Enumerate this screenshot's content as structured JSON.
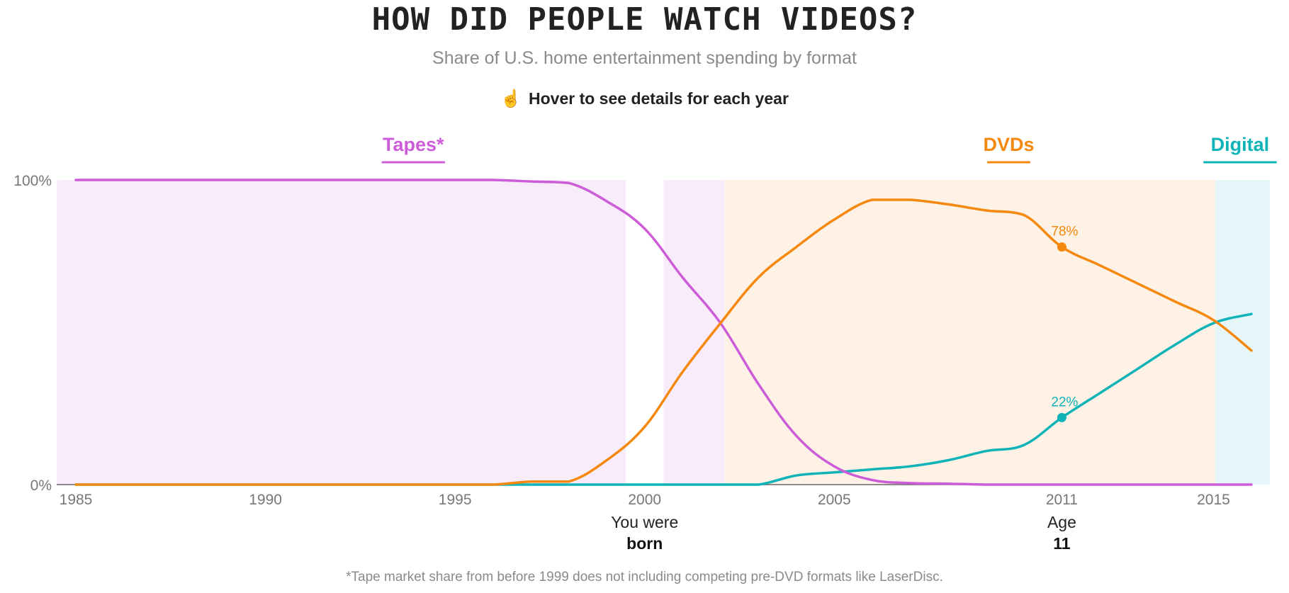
{
  "header": {
    "title": "HOW DID PEOPLE WATCH VIDEOS?",
    "subtitle": "Share of U.S. home entertainment spending by format",
    "hint": "Hover to see details for each year",
    "hint_icon": "pointing-hand-icon"
  },
  "footnote": "*Tape market share from before 1999 does not including competing pre-DVD formats like LaserDisc.",
  "colors": {
    "tapes": "#cc5cd8",
    "dvds": "#f5890f",
    "digital": "#10b3b8",
    "tapes_band": "#f8ecfa",
    "dvds_band": "#fef2e6",
    "digital_band": "#e6f6f8"
  },
  "chart_data": {
    "type": "line",
    "title": "HOW DID PEOPLE WATCH VIDEOS?",
    "subtitle": "Share of U.S. home entertainment spending by format",
    "x": [
      1985,
      1986,
      1987,
      1988,
      1989,
      1990,
      1991,
      1992,
      1993,
      1994,
      1995,
      1996,
      1997,
      1998,
      1999,
      2000,
      2001,
      2002,
      2003,
      2004,
      2005,
      2006,
      2007,
      2008,
      2009,
      2010,
      2011,
      2012,
      2013,
      2014,
      2015,
      2016
    ],
    "xticks": [
      "1985",
      "1990",
      "1995",
      "2000",
      "2005",
      "2011",
      "2015"
    ],
    "xtick_values": [
      1985,
      1990,
      1995,
      2000,
      2005,
      2011,
      2015
    ],
    "xlim": [
      1984.5,
      2016.5
    ],
    "ylim": [
      0,
      100
    ],
    "yticks": [
      "0%",
      "100%"
    ],
    "ytick_values": [
      0,
      100
    ],
    "series": [
      {
        "name": "Tapes*",
        "key": "tapes",
        "values": [
          100,
          100,
          100,
          100,
          100,
          100,
          100,
          100,
          100,
          100,
          100,
          100,
          99.5,
          99,
          93,
          84,
          68,
          53,
          33,
          16,
          6,
          1.5,
          0.5,
          0.3,
          0,
          0,
          0,
          0,
          0,
          0,
          0,
          0
        ]
      },
      {
        "name": "DVDs",
        "key": "dvds",
        "values": [
          0,
          0,
          0,
          0,
          0,
          0,
          0,
          0,
          0,
          0,
          0,
          0,
          1,
          1,
          8,
          19,
          37,
          53,
          68,
          78,
          87,
          93.5,
          93.5,
          92,
          90,
          88.5,
          78,
          72,
          66,
          60,
          54,
          44
        ]
      },
      {
        "name": "Digital",
        "key": "digital",
        "values": [
          0,
          0,
          0,
          0,
          0,
          0,
          0,
          0,
          0,
          0,
          0,
          0,
          0,
          0,
          0,
          0,
          0,
          0,
          0,
          3,
          4,
          5,
          6,
          8,
          11,
          13,
          22,
          30,
          38,
          46,
          53,
          56
        ]
      }
    ],
    "bands": [
      {
        "key": "tapes",
        "from": 1984.5,
        "to": 1999.5
      },
      {
        "key": "tapes",
        "from": 2000.5,
        "to": 2002.1
      },
      {
        "key": "dvds",
        "from": 2002.1,
        "to": 2015.05
      },
      {
        "key": "digital",
        "from": 2015.05,
        "to": 2016.5
      }
    ],
    "legend": [
      {
        "label": "Tapes*",
        "key": "tapes",
        "x": 1993.9
      },
      {
        "label": "DVDs",
        "key": "dvds",
        "x": 2009.6
      },
      {
        "label": "Digital",
        "key": "digital",
        "x": 2015.7
      }
    ],
    "highlight": {
      "year": 2011,
      "points": [
        {
          "key": "dvds",
          "value": 78,
          "label": "78%"
        },
        {
          "key": "digital",
          "value": 22,
          "label": "22%"
        }
      ]
    },
    "annotations": [
      {
        "x": 2000,
        "line1": "You were",
        "line2": "born"
      },
      {
        "x": 2011,
        "line1": "Age",
        "line2": "11"
      }
    ],
    "grid": false,
    "legend_position": "top"
  }
}
